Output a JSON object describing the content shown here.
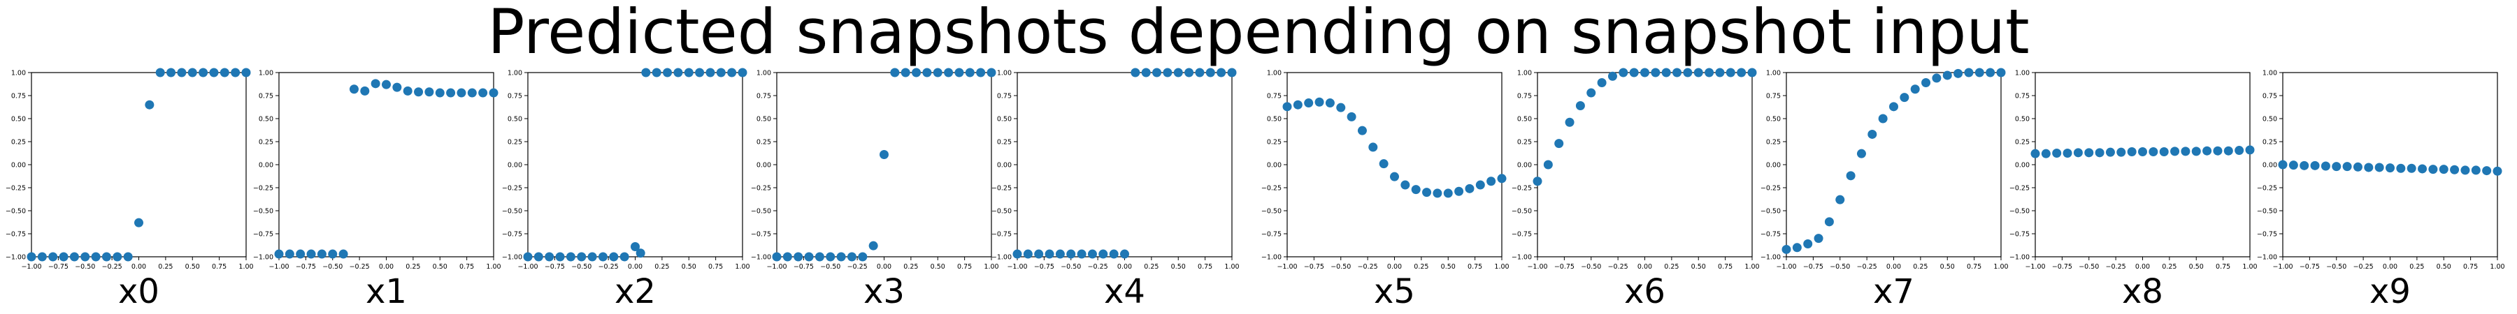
{
  "figure": {
    "title": "Predicted snapshots depending on snapshot input"
  },
  "chart_data": [
    {
      "type": "scatter",
      "title": "",
      "xlabel": "x0",
      "ylabel": "",
      "xlim": [
        -1,
        1
      ],
      "ylim": [
        -1,
        1
      ],
      "x_ticks": [
        "−1.00",
        "−0.75",
        "−0.50",
        "−0.25",
        "0.00",
        "0.25",
        "0.50",
        "0.75",
        "1.00"
      ],
      "y_ticks": [
        "−1.00",
        "−0.75",
        "−0.50",
        "−0.25",
        "0.00",
        "0.25",
        "0.50",
        "0.75",
        "1.00"
      ],
      "color": "#1f77b4",
      "series": [
        {
          "x": [
            -1.0,
            -0.9,
            -0.8,
            -0.7,
            -0.6,
            -0.5,
            -0.4,
            -0.3,
            -0.2,
            -0.1,
            0.0,
            0.1,
            0.2,
            0.3,
            0.4,
            0.5,
            0.6,
            0.7,
            0.8,
            0.9,
            1.0
          ],
          "y": [
            -1.0,
            -1.0,
            -1.0,
            -1.0,
            -1.0,
            -1.0,
            -1.0,
            -1.0,
            -1.0,
            -1.0,
            -0.63,
            0.65,
            1.0,
            1.0,
            1.0,
            1.0,
            1.0,
            1.0,
            1.0,
            1.0,
            1.0
          ]
        }
      ]
    },
    {
      "type": "scatter",
      "title": "",
      "xlabel": "x1",
      "ylabel": "",
      "xlim": [
        -1,
        1
      ],
      "ylim": [
        -1,
        1
      ],
      "x_ticks": [
        "−1.00",
        "−0.75",
        "−0.50",
        "−0.25",
        "0.00",
        "0.25",
        "0.50",
        "0.75",
        "1.00"
      ],
      "y_ticks": [
        "−1.00",
        "−0.75",
        "−0.50",
        "−0.25",
        "0.00",
        "0.25",
        "0.50",
        "0.75",
        "1.00"
      ],
      "color": "#1f77b4",
      "series": [
        {
          "x": [
            -1.0,
            -0.9,
            -0.8,
            -0.7,
            -0.6,
            -0.5,
            -0.4,
            -0.3,
            -0.2,
            -0.1,
            0.0,
            0.1,
            0.2,
            0.3,
            0.4,
            0.5,
            0.6,
            0.7,
            0.8,
            0.9,
            1.0
          ],
          "y": [
            -0.97,
            -0.97,
            -0.97,
            -0.97,
            -0.97,
            -0.97,
            -0.97,
            0.82,
            0.8,
            0.88,
            0.87,
            0.84,
            0.8,
            0.79,
            0.79,
            0.78,
            0.78,
            0.78,
            0.78,
            0.78,
            0.78
          ]
        }
      ]
    },
    {
      "type": "scatter",
      "title": "",
      "xlabel": "x2",
      "ylabel": "",
      "xlim": [
        -1,
        1
      ],
      "ylim": [
        -1,
        1
      ],
      "x_ticks": [
        "−1.00",
        "−0.75",
        "−0.50",
        "−0.25",
        "0.00",
        "0.25",
        "0.50",
        "0.75",
        "1.00"
      ],
      "y_ticks": [
        "−1.00",
        "−0.75",
        "−0.50",
        "−0.25",
        "0.00",
        "0.25",
        "0.50",
        "0.75",
        "1.00"
      ],
      "color": "#1f77b4",
      "series": [
        {
          "x": [
            -1.0,
            -0.9,
            -0.8,
            -0.7,
            -0.6,
            -0.5,
            -0.4,
            -0.3,
            -0.2,
            -0.1,
            0.0,
            0.05,
            0.1,
            0.2,
            0.3,
            0.4,
            0.5,
            0.6,
            0.7,
            0.8,
            0.9,
            1.0
          ],
          "y": [
            -1.0,
            -1.0,
            -1.0,
            -1.0,
            -1.0,
            -1.0,
            -1.0,
            -1.0,
            -1.0,
            -1.0,
            -0.89,
            -0.96,
            1.0,
            1.0,
            1.0,
            1.0,
            1.0,
            1.0,
            1.0,
            1.0,
            1.0,
            1.0
          ]
        }
      ]
    },
    {
      "type": "scatter",
      "title": "",
      "xlabel": "x3",
      "ylabel": "",
      "xlim": [
        -1,
        1
      ],
      "ylim": [
        -1,
        1
      ],
      "x_ticks": [
        "−1.00",
        "−0.75",
        "−0.50",
        "−0.25",
        "0.00",
        "0.25",
        "0.50",
        "0.75",
        "1.00"
      ],
      "y_ticks": [
        "−1.00",
        "−0.75",
        "−0.50",
        "−0.25",
        "0.00",
        "0.25",
        "0.50",
        "0.75",
        "1.00"
      ],
      "color": "#1f77b4",
      "series": [
        {
          "x": [
            -1.0,
            -0.9,
            -0.8,
            -0.7,
            -0.6,
            -0.5,
            -0.4,
            -0.3,
            -0.2,
            -0.1,
            0.0,
            0.1,
            0.2,
            0.3,
            0.4,
            0.5,
            0.6,
            0.7,
            0.8,
            0.9,
            1.0
          ],
          "y": [
            -1.0,
            -1.0,
            -1.0,
            -1.0,
            -1.0,
            -1.0,
            -1.0,
            -1.0,
            -1.0,
            -0.88,
            0.11,
            1.0,
            1.0,
            1.0,
            1.0,
            1.0,
            1.0,
            1.0,
            1.0,
            1.0,
            1.0
          ]
        }
      ]
    },
    {
      "type": "scatter",
      "title": "",
      "xlabel": "x4",
      "ylabel": "",
      "xlim": [
        -1,
        1
      ],
      "ylim": [
        -1,
        1
      ],
      "x_ticks": [
        "−1.00",
        "−0.75",
        "−0.50",
        "−0.25",
        "0.00",
        "0.25",
        "0.50",
        "0.75",
        "1.00"
      ],
      "y_ticks": [
        "−1.00",
        "−0.75",
        "−0.50",
        "−0.25",
        "0.00",
        "0.25",
        "0.50",
        "0.75",
        "1.00"
      ],
      "color": "#1f77b4",
      "series": [
        {
          "x": [
            -1.0,
            -0.9,
            -0.8,
            -0.7,
            -0.6,
            -0.5,
            -0.4,
            -0.3,
            -0.2,
            -0.1,
            0.0,
            0.1,
            0.2,
            0.3,
            0.4,
            0.5,
            0.6,
            0.7,
            0.8,
            0.9,
            1.0
          ],
          "y": [
            -0.97,
            -0.97,
            -0.97,
            -0.97,
            -0.97,
            -0.97,
            -0.97,
            -0.97,
            -0.97,
            -0.97,
            -0.97,
            1.0,
            1.0,
            1.0,
            1.0,
            1.0,
            1.0,
            1.0,
            1.0,
            1.0,
            1.0
          ]
        }
      ]
    },
    {
      "type": "scatter",
      "title": "",
      "xlabel": "x5",
      "ylabel": "",
      "xlim": [
        -1,
        1
      ],
      "ylim": [
        -1,
        1
      ],
      "x_ticks": [
        "−1.00",
        "−0.75",
        "−0.50",
        "−0.25",
        "0.00",
        "0.25",
        "0.50",
        "0.75",
        "1.00"
      ],
      "y_ticks": [
        "−1.00",
        "−0.75",
        "−0.50",
        "−0.25",
        "0.00",
        "0.25",
        "0.50",
        "0.75",
        "1.00"
      ],
      "color": "#1f77b4",
      "series": [
        {
          "x": [
            -1.0,
            -0.9,
            -0.8,
            -0.7,
            -0.6,
            -0.5,
            -0.4,
            -0.3,
            -0.2,
            -0.1,
            0.0,
            0.1,
            0.2,
            0.3,
            0.4,
            0.5,
            0.6,
            0.7,
            0.8,
            0.9,
            1.0
          ],
          "y": [
            0.63,
            0.65,
            0.67,
            0.68,
            0.67,
            0.62,
            0.52,
            0.37,
            0.19,
            0.01,
            -0.13,
            -0.22,
            -0.27,
            -0.3,
            -0.31,
            -0.31,
            -0.29,
            -0.26,
            -0.22,
            -0.18,
            -0.15
          ]
        }
      ]
    },
    {
      "type": "scatter",
      "title": "",
      "xlabel": "x6",
      "ylabel": "",
      "xlim": [
        -1,
        1
      ],
      "ylim": [
        -1,
        1
      ],
      "x_ticks": [
        "−1.00",
        "−0.75",
        "−0.50",
        "−0.25",
        "0.00",
        "0.25",
        "0.50",
        "0.75",
        "1.00"
      ],
      "y_ticks": [
        "−1.00",
        "−0.75",
        "−0.50",
        "−0.25",
        "0.00",
        "0.25",
        "0.50",
        "0.75",
        "1.00"
      ],
      "color": "#1f77b4",
      "series": [
        {
          "x": [
            -1.0,
            -0.9,
            -0.8,
            -0.7,
            -0.6,
            -0.5,
            -0.4,
            -0.3,
            -0.2,
            -0.1,
            0.0,
            0.1,
            0.2,
            0.3,
            0.4,
            0.5,
            0.6,
            0.7,
            0.8,
            0.9,
            1.0
          ],
          "y": [
            -0.18,
            0.0,
            0.23,
            0.46,
            0.64,
            0.78,
            0.89,
            0.96,
            1.0,
            1.0,
            1.0,
            1.0,
            1.0,
            1.0,
            1.0,
            1.0,
            1.0,
            1.0,
            1.0,
            1.0,
            1.0
          ]
        }
      ]
    },
    {
      "type": "scatter",
      "title": "",
      "xlabel": "x7",
      "ylabel": "",
      "xlim": [
        -1,
        1
      ],
      "ylim": [
        -1,
        1
      ],
      "x_ticks": [
        "−1.00",
        "−0.75",
        "−0.50",
        "−0.25",
        "0.00",
        "0.25",
        "0.50",
        "0.75",
        "1.00"
      ],
      "y_ticks": [
        "−1.00",
        "−0.75",
        "−0.50",
        "−0.25",
        "0.00",
        "0.25",
        "0.50",
        "0.75",
        "1.00"
      ],
      "color": "#1f77b4",
      "series": [
        {
          "x": [
            -1.0,
            -0.9,
            -0.8,
            -0.7,
            -0.6,
            -0.5,
            -0.4,
            -0.3,
            -0.2,
            -0.1,
            0.0,
            0.1,
            0.2,
            0.3,
            0.4,
            0.5,
            0.6,
            0.7,
            0.8,
            0.9,
            1.0
          ],
          "y": [
            -0.92,
            -0.9,
            -0.86,
            -0.8,
            -0.62,
            -0.38,
            -0.12,
            0.12,
            0.33,
            0.5,
            0.63,
            0.73,
            0.82,
            0.89,
            0.94,
            0.97,
            0.99,
            1.0,
            1.0,
            1.0,
            1.0
          ]
        }
      ]
    },
    {
      "type": "scatter",
      "title": "",
      "xlabel": "x8",
      "ylabel": "",
      "xlim": [
        -1,
        1
      ],
      "ylim": [
        -1,
        1
      ],
      "x_ticks": [
        "−1.00",
        "−0.75",
        "−0.50",
        "−0.25",
        "0.00",
        "0.25",
        "0.50",
        "0.75",
        "1.00"
      ],
      "y_ticks": [
        "−1.00",
        "−0.75",
        "−0.50",
        "−0.25",
        "0.00",
        "0.25",
        "0.50",
        "0.75",
        "1.00"
      ],
      "color": "#1f77b4",
      "series": [
        {
          "x": [
            -1.0,
            -0.9,
            -0.8,
            -0.7,
            -0.6,
            -0.5,
            -0.4,
            -0.3,
            -0.2,
            -0.1,
            0.0,
            0.1,
            0.2,
            0.3,
            0.4,
            0.5,
            0.6,
            0.7,
            0.8,
            0.9,
            1.0
          ],
          "y": [
            0.12,
            0.12,
            0.125,
            0.125,
            0.13,
            0.13,
            0.13,
            0.135,
            0.135,
            0.14,
            0.14,
            0.14,
            0.14,
            0.145,
            0.145,
            0.145,
            0.15,
            0.15,
            0.15,
            0.155,
            0.16
          ]
        }
      ]
    },
    {
      "type": "scatter",
      "title": "",
      "xlabel": "x9",
      "ylabel": "",
      "xlim": [
        -1,
        1
      ],
      "ylim": [
        -1,
        1
      ],
      "x_ticks": [
        "−1.00",
        "−0.75",
        "−0.50",
        "−0.25",
        "0.00",
        "0.25",
        "0.50",
        "0.75",
        "1.00"
      ],
      "y_ticks": [
        "−1.00",
        "−0.75",
        "−0.50",
        "−0.25",
        "0.00",
        "0.25",
        "0.50",
        "0.75",
        "1.00"
      ],
      "color": "#1f77b4",
      "series": [
        {
          "x": [
            -1.0,
            -0.9,
            -0.8,
            -0.7,
            -0.6,
            -0.5,
            -0.4,
            -0.3,
            -0.2,
            -0.1,
            0.0,
            0.1,
            0.2,
            0.3,
            0.4,
            0.5,
            0.6,
            0.7,
            0.8,
            0.9,
            1.0
          ],
          "y": [
            0.0,
            -0.005,
            -0.01,
            -0.01,
            -0.015,
            -0.02,
            -0.02,
            -0.025,
            -0.03,
            -0.03,
            -0.035,
            -0.04,
            -0.04,
            -0.045,
            -0.05,
            -0.05,
            -0.055,
            -0.06,
            -0.06,
            -0.065,
            -0.07
          ]
        }
      ]
    }
  ]
}
